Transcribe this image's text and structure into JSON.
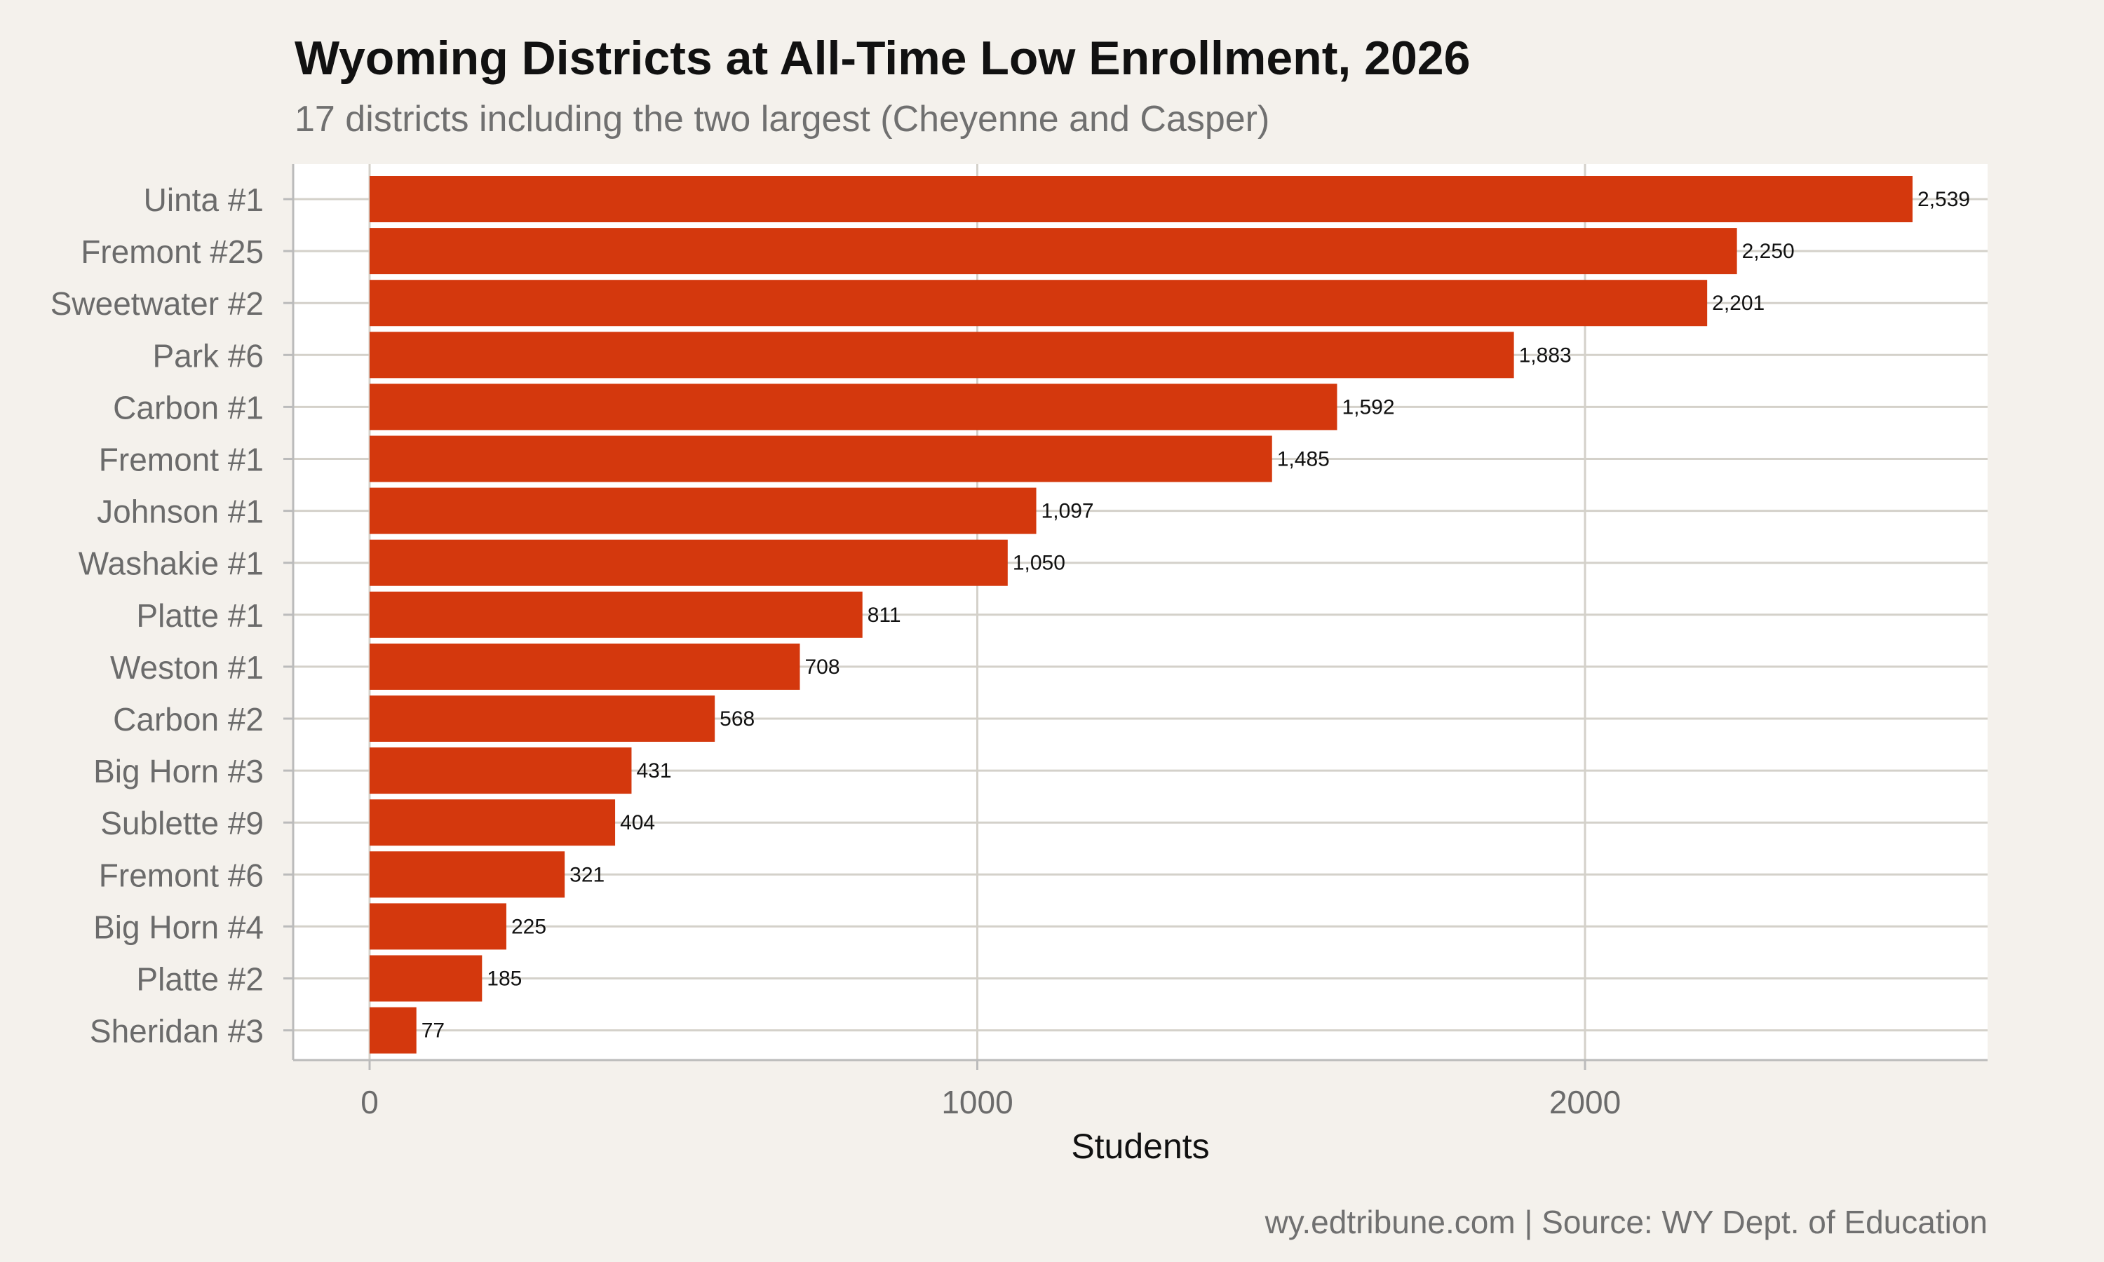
{
  "chart_data": {
    "type": "bar",
    "orientation": "horizontal",
    "title": "Wyoming Districts at All-Time Low Enrollment, 2026",
    "subtitle": "17 districts including the two largest (Cheyenne and Casper)",
    "xlabel": "Students",
    "ylabel": "",
    "caption": "wy.edtribune.com | Source: WY Dept. of Education",
    "xlim": [
      0,
      2666
    ],
    "xticks": [
      0,
      1000,
      2000
    ],
    "grid": true,
    "legend": "none",
    "bar_color": "#D4380D",
    "categories": [
      "Uinta #1",
      "Fremont #25",
      "Sweetwater #2",
      "Park #6",
      "Carbon #1",
      "Fremont #1",
      "Johnson #1",
      "Washakie #1",
      "Platte #1",
      "Weston #1",
      "Carbon #2",
      "Big Horn #3",
      "Sublette #9",
      "Fremont #6",
      "Big Horn #4",
      "Platte #2",
      "Sheridan #3"
    ],
    "values": [
      2539,
      2250,
      2201,
      1883,
      1592,
      1485,
      1097,
      1050,
      811,
      708,
      568,
      431,
      404,
      321,
      225,
      185,
      77
    ]
  }
}
